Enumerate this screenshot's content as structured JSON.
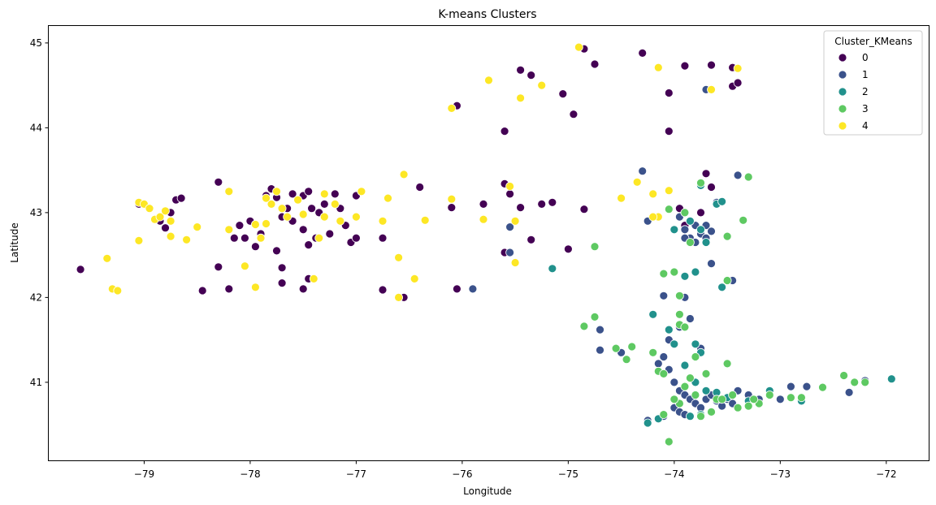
{
  "chart_data": {
    "type": "scatter",
    "title": "K-means Clusters",
    "xlabel": "Longitude",
    "ylabel": "Latitude",
    "xlim": [
      -79.9,
      -71.6
    ],
    "ylim": [
      40.08,
      45.2
    ],
    "xticks": [
      -79,
      -78,
      -77,
      -76,
      -75,
      -74,
      -73,
      -72
    ],
    "xtick_labels": [
      "−79",
      "−78",
      "−77",
      "−76",
      "−75",
      "−74",
      "−73",
      "−72"
    ],
    "yticks": [
      41,
      42,
      43,
      44,
      45
    ],
    "ytick_labels": [
      "41",
      "42",
      "43",
      "44",
      "45"
    ],
    "grid": false,
    "legend": {
      "title": "Cluster_KMeans",
      "position": "top-right"
    },
    "series": [
      {
        "name": "0",
        "color": "#440154",
        "points": [
          [
            -79.6,
            42.33
          ],
          [
            -79.05,
            42.67
          ],
          [
            -79.05,
            43.1
          ],
          [
            -78.95,
            43.05
          ],
          [
            -78.85,
            42.9
          ],
          [
            -78.8,
            42.82
          ],
          [
            -78.75,
            43.0
          ],
          [
            -78.7,
            43.15
          ],
          [
            -78.65,
            43.17
          ],
          [
            -78.45,
            42.08
          ],
          [
            -78.3,
            43.36
          ],
          [
            -78.3,
            42.36
          ],
          [
            -78.2,
            42.1
          ],
          [
            -78.15,
            42.7
          ],
          [
            -78.1,
            42.85
          ],
          [
            -78.05,
            42.7
          ],
          [
            -78.0,
            42.9
          ],
          [
            -77.95,
            42.6
          ],
          [
            -77.9,
            42.75
          ],
          [
            -77.85,
            43.2
          ],
          [
            -77.8,
            43.28
          ],
          [
            -77.75,
            43.18
          ],
          [
            -77.75,
            42.55
          ],
          [
            -77.7,
            42.95
          ],
          [
            -77.65,
            43.05
          ],
          [
            -77.6,
            43.22
          ],
          [
            -77.6,
            42.9
          ],
          [
            -77.55,
            43.15
          ],
          [
            -77.5,
            43.2
          ],
          [
            -77.5,
            42.8
          ],
          [
            -77.45,
            43.25
          ],
          [
            -77.45,
            42.62
          ],
          [
            -77.42,
            43.05
          ],
          [
            -77.38,
            42.7
          ],
          [
            -77.3,
            43.1
          ],
          [
            -77.25,
            42.75
          ],
          [
            -77.2,
            43.22
          ],
          [
            -77.15,
            43.05
          ],
          [
            -77.1,
            42.85
          ],
          [
            -77.05,
            42.65
          ],
          [
            -77.0,
            43.2
          ],
          [
            -77.0,
            42.7
          ],
          [
            -77.7,
            42.35
          ],
          [
            -77.7,
            42.17
          ],
          [
            -77.35,
            43.0
          ],
          [
            -76.95,
            43.25
          ],
          [
            -76.75,
            42.7
          ],
          [
            -76.75,
            42.09
          ],
          [
            -76.55,
            42.0
          ],
          [
            -76.4,
            43.3
          ],
          [
            -76.1,
            43.06
          ],
          [
            -76.05,
            42.1
          ],
          [
            -75.9,
            42.1
          ],
          [
            -75.8,
            43.1
          ],
          [
            -75.6,
            43.34
          ],
          [
            -75.6,
            42.53
          ],
          [
            -75.55,
            43.22
          ],
          [
            -75.45,
            43.06
          ],
          [
            -75.35,
            42.68
          ],
          [
            -75.25,
            43.1
          ],
          [
            -75.15,
            43.12
          ],
          [
            -75.0,
            42.57
          ],
          [
            -74.85,
            43.04
          ],
          [
            -75.6,
            43.96
          ],
          [
            -76.05,
            44.26
          ],
          [
            -75.45,
            44.68
          ],
          [
            -75.35,
            44.62
          ],
          [
            -75.05,
            44.4
          ],
          [
            -74.95,
            44.16
          ],
          [
            -74.85,
            44.93
          ],
          [
            -74.75,
            44.75
          ],
          [
            -74.3,
            44.88
          ],
          [
            -74.05,
            44.41
          ],
          [
            -74.05,
            43.96
          ],
          [
            -73.9,
            44.73
          ],
          [
            -73.65,
            44.74
          ],
          [
            -73.45,
            44.49
          ],
          [
            -73.4,
            44.53
          ],
          [
            -73.45,
            44.71
          ],
          [
            -73.7,
            43.46
          ],
          [
            -73.65,
            43.3
          ],
          [
            -73.75,
            43.0
          ],
          [
            -73.9,
            42.85
          ],
          [
            -73.95,
            43.05
          ],
          [
            -77.5,
            42.1
          ],
          [
            -77.45,
            42.22
          ]
        ]
      },
      {
        "name": "1",
        "color": "#3b528b",
        "points": [
          [
            -74.3,
            43.49
          ],
          [
            -74.25,
            42.9
          ],
          [
            -73.95,
            42.95
          ],
          [
            -73.9,
            42.8
          ],
          [
            -73.85,
            42.7
          ],
          [
            -73.8,
            42.65
          ],
          [
            -73.75,
            42.75
          ],
          [
            -73.7,
            42.7
          ],
          [
            -73.7,
            42.85
          ],
          [
            -73.65,
            42.78
          ],
          [
            -73.8,
            42.85
          ],
          [
            -73.6,
            43.12
          ],
          [
            -73.4,
            43.44
          ],
          [
            -73.45,
            42.2
          ],
          [
            -73.65,
            42.4
          ],
          [
            -73.9,
            42.7
          ],
          [
            -74.1,
            42.02
          ],
          [
            -74.05,
            41.5
          ],
          [
            -74.1,
            41.3
          ],
          [
            -74.05,
            41.15
          ],
          [
            -74.0,
            41.0
          ],
          [
            -73.95,
            40.9
          ],
          [
            -73.9,
            40.85
          ],
          [
            -73.85,
            40.8
          ],
          [
            -73.8,
            40.75
          ],
          [
            -73.75,
            40.7
          ],
          [
            -73.7,
            40.8
          ],
          [
            -73.65,
            40.85
          ],
          [
            -73.6,
            40.78
          ],
          [
            -73.55,
            40.72
          ],
          [
            -73.5,
            40.8
          ],
          [
            -73.45,
            40.75
          ],
          [
            -73.4,
            40.9
          ],
          [
            -73.3,
            40.85
          ],
          [
            -73.2,
            40.8
          ],
          [
            -73.1,
            40.88
          ],
          [
            -73.0,
            40.8
          ],
          [
            -72.9,
            40.95
          ],
          [
            -72.8,
            40.82
          ],
          [
            -72.75,
            40.95
          ],
          [
            -72.35,
            40.88
          ],
          [
            -72.2,
            41.02
          ],
          [
            -74.7,
            41.62
          ],
          [
            -74.7,
            41.38
          ],
          [
            -74.5,
            41.35
          ],
          [
            -74.25,
            40.55
          ],
          [
            -74.1,
            40.6
          ],
          [
            -74.0,
            40.7
          ],
          [
            -73.95,
            40.65
          ],
          [
            -73.9,
            40.62
          ],
          [
            -73.95,
            41.65
          ],
          [
            -73.85,
            41.75
          ],
          [
            -73.9,
            42.0
          ],
          [
            -73.7,
            44.45
          ],
          [
            -75.55,
            42.83
          ],
          [
            -75.9,
            42.1
          ],
          [
            -75.55,
            42.53
          ],
          [
            -74.15,
            41.22
          ],
          [
            -73.75,
            41.4
          ]
        ]
      },
      {
        "name": "2",
        "color": "#21918c",
        "points": [
          [
            -75.15,
            42.34
          ],
          [
            -74.0,
            42.8
          ],
          [
            -73.85,
            42.9
          ],
          [
            -73.75,
            42.8
          ],
          [
            -73.7,
            42.65
          ],
          [
            -73.6,
            43.1
          ],
          [
            -73.55,
            43.13
          ],
          [
            -73.55,
            42.12
          ],
          [
            -73.8,
            42.3
          ],
          [
            -73.9,
            42.25
          ],
          [
            -74.2,
            41.8
          ],
          [
            -74.05,
            41.62
          ],
          [
            -74.0,
            41.45
          ],
          [
            -73.8,
            41.45
          ],
          [
            -73.75,
            41.35
          ],
          [
            -73.9,
            41.2
          ],
          [
            -74.1,
            41.1
          ],
          [
            -73.8,
            41.0
          ],
          [
            -73.7,
            40.9
          ],
          [
            -73.6,
            40.88
          ],
          [
            -73.5,
            40.82
          ],
          [
            -73.3,
            40.78
          ],
          [
            -73.1,
            40.9
          ],
          [
            -72.8,
            40.78
          ],
          [
            -74.25,
            40.52
          ],
          [
            -74.15,
            40.57
          ],
          [
            -73.85,
            40.6
          ],
          [
            -73.75,
            40.62
          ],
          [
            -71.95,
            41.04
          ],
          [
            -73.75,
            43.32
          ]
        ]
      },
      {
        "name": "3",
        "color": "#5ec962",
        "points": [
          [
            -74.75,
            42.6
          ],
          [
            -74.05,
            43.04
          ],
          [
            -73.3,
            43.42
          ],
          [
            -73.35,
            42.91
          ],
          [
            -73.5,
            42.72
          ],
          [
            -73.5,
            42.2
          ],
          [
            -73.75,
            43.35
          ],
          [
            -73.9,
            43.0
          ],
          [
            -73.85,
            42.65
          ],
          [
            -74.0,
            42.3
          ],
          [
            -73.95,
            42.02
          ],
          [
            -74.1,
            42.28
          ],
          [
            -74.85,
            41.66
          ],
          [
            -74.75,
            41.77
          ],
          [
            -74.55,
            41.4
          ],
          [
            -74.4,
            41.42
          ],
          [
            -74.45,
            41.27
          ],
          [
            -74.15,
            41.13
          ],
          [
            -73.95,
            41.8
          ],
          [
            -73.95,
            41.68
          ],
          [
            -73.9,
            41.65
          ],
          [
            -73.8,
            41.3
          ],
          [
            -73.7,
            41.1
          ],
          [
            -73.5,
            41.22
          ],
          [
            -73.85,
            41.05
          ],
          [
            -73.9,
            40.95
          ],
          [
            -73.8,
            40.85
          ],
          [
            -73.6,
            40.8
          ],
          [
            -73.4,
            40.7
          ],
          [
            -73.3,
            40.72
          ],
          [
            -73.2,
            40.75
          ],
          [
            -73.1,
            40.85
          ],
          [
            -72.9,
            40.82
          ],
          [
            -72.6,
            40.94
          ],
          [
            -72.4,
            41.08
          ],
          [
            -72.3,
            41.0
          ],
          [
            -72.2,
            41.0
          ],
          [
            -74.2,
            41.35
          ],
          [
            -74.1,
            41.1
          ],
          [
            -74.1,
            40.62
          ],
          [
            -74.05,
            40.3
          ],
          [
            -73.75,
            40.6
          ],
          [
            -73.65,
            40.65
          ],
          [
            -73.95,
            40.75
          ],
          [
            -74.0,
            40.8
          ],
          [
            -72.8,
            40.82
          ],
          [
            -73.25,
            40.8
          ],
          [
            -73.45,
            40.85
          ],
          [
            -73.55,
            40.8
          ]
        ]
      },
      {
        "name": "4",
        "color": "#fde725",
        "points": [
          [
            -79.35,
            42.46
          ],
          [
            -79.3,
            42.1
          ],
          [
            -79.25,
            42.08
          ],
          [
            -79.05,
            43.12
          ],
          [
            -79.0,
            43.1
          ],
          [
            -78.95,
            43.05
          ],
          [
            -78.9,
            42.92
          ],
          [
            -78.85,
            42.95
          ],
          [
            -78.8,
            43.02
          ],
          [
            -78.75,
            42.9
          ],
          [
            -78.6,
            42.68
          ],
          [
            -78.5,
            42.83
          ],
          [
            -78.2,
            43.25
          ],
          [
            -78.2,
            42.8
          ],
          [
            -78.05,
            42.37
          ],
          [
            -77.95,
            42.12
          ],
          [
            -77.95,
            42.86
          ],
          [
            -77.9,
            42.7
          ],
          [
            -77.85,
            42.87
          ],
          [
            -77.8,
            43.1
          ],
          [
            -77.75,
            43.25
          ],
          [
            -77.7,
            43.05
          ],
          [
            -77.65,
            42.95
          ],
          [
            -77.55,
            43.15
          ],
          [
            -77.5,
            42.98
          ],
          [
            -77.4,
            42.22
          ],
          [
            -77.35,
            42.7
          ],
          [
            -77.3,
            42.95
          ],
          [
            -77.3,
            43.22
          ],
          [
            -77.2,
            43.1
          ],
          [
            -77.15,
            42.9
          ],
          [
            -77.0,
            42.95
          ],
          [
            -76.95,
            43.25
          ],
          [
            -76.75,
            42.9
          ],
          [
            -76.7,
            43.17
          ],
          [
            -76.6,
            42.47
          ],
          [
            -76.6,
            42.0
          ],
          [
            -76.55,
            43.45
          ],
          [
            -76.45,
            42.22
          ],
          [
            -76.35,
            42.91
          ],
          [
            -76.1,
            43.16
          ],
          [
            -75.8,
            42.92
          ],
          [
            -75.55,
            43.31
          ],
          [
            -75.5,
            42.9
          ],
          [
            -75.5,
            42.41
          ],
          [
            -75.45,
            44.35
          ],
          [
            -75.25,
            44.5
          ],
          [
            -75.75,
            44.56
          ],
          [
            -76.1,
            44.23
          ],
          [
            -74.9,
            44.95
          ],
          [
            -74.5,
            43.17
          ],
          [
            -74.35,
            43.36
          ],
          [
            -74.2,
            43.22
          ],
          [
            -74.15,
            42.95
          ],
          [
            -74.05,
            43.26
          ],
          [
            -74.2,
            42.95
          ],
          [
            -74.15,
            44.71
          ],
          [
            -73.65,
            44.45
          ],
          [
            -73.4,
            44.7
          ],
          [
            -78.75,
            42.72
          ],
          [
            -79.05,
            42.67
          ],
          [
            -77.85,
            43.17
          ]
        ]
      }
    ]
  }
}
